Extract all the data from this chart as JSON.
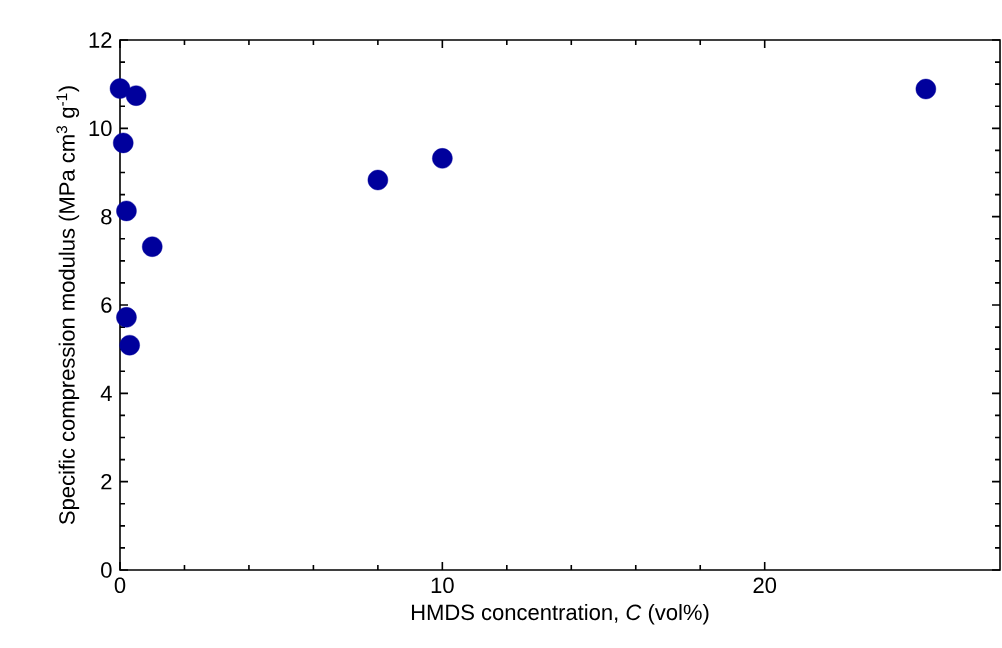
{
  "chart_data": {
    "type": "scatter",
    "xlabel": "HMDS concentration, *C* (vol%)",
    "ylabel": "Specific compression modulus (MPa cm$^{3}$ g$^{-1}$)",
    "x": [
      0,
      0.5,
      0.1,
      0.2,
      1,
      0.2,
      0.3,
      8,
      10,
      25
    ],
    "values": [
      10.9,
      10.74,
      9.67,
      8.13,
      7.32,
      5.72,
      5.09,
      8.83,
      9.32,
      10.89
    ],
    "color": "#00009c",
    "marker": "circle",
    "xlim": [
      0,
      27.3
    ],
    "ylim": [
      0,
      12
    ],
    "xticks": [
      0,
      10,
      20
    ],
    "yticks": [
      0,
      2,
      4,
      6,
      8,
      10,
      12
    ],
    "grid": false
  }
}
